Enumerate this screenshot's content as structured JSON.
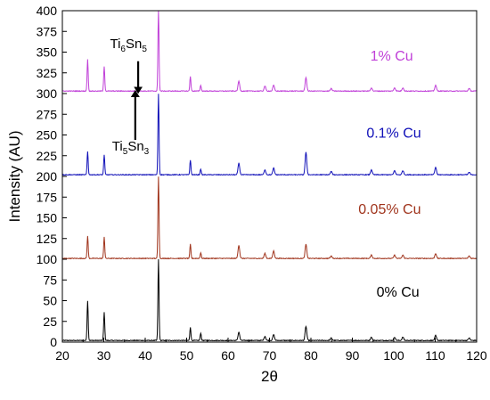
{
  "chart_data": {
    "type": "line",
    "title": "",
    "xlabel": "2θ",
    "ylabel": "Intensity (AU)",
    "xlim": [
      20,
      120
    ],
    "ylim": [
      0,
      400
    ],
    "xticks": [
      20,
      30,
      40,
      50,
      60,
      70,
      80,
      90,
      100,
      110,
      120
    ],
    "yticks": [
      0,
      25,
      50,
      75,
      100,
      125,
      150,
      175,
      200,
      225,
      250,
      275,
      300,
      325,
      350,
      375,
      400
    ],
    "grid": false,
    "legend": "none",
    "series": [
      {
        "name": "0% Cu",
        "color": "#000000",
        "baseline": 2,
        "peaks": [
          [
            26.1,
            48
          ],
          [
            30.1,
            34
          ],
          [
            43.2,
            98
          ],
          [
            50.9,
            16
          ],
          [
            53.4,
            9
          ],
          [
            62.6,
            10
          ],
          [
            68.9,
            5
          ],
          [
            71.0,
            7
          ],
          [
            78.8,
            17
          ],
          [
            84.9,
            3
          ],
          [
            94.6,
            4
          ],
          [
            100.2,
            4
          ],
          [
            102.2,
            4
          ],
          [
            110.1,
            6
          ],
          [
            118.2,
            3
          ]
        ]
      },
      {
        "name": "0.05% Cu",
        "color": "#a0341c",
        "baseline": 101,
        "peaks": [
          [
            26.1,
            27
          ],
          [
            30.1,
            26
          ],
          [
            43.2,
            99
          ],
          [
            50.9,
            17
          ],
          [
            53.4,
            7
          ],
          [
            62.6,
            16
          ],
          [
            68.9,
            6
          ],
          [
            71.0,
            9
          ],
          [
            78.8,
            17
          ],
          [
            84.9,
            3
          ],
          [
            94.6,
            4
          ],
          [
            100.2,
            4
          ],
          [
            102.2,
            4
          ],
          [
            110.1,
            6
          ],
          [
            118.2,
            3
          ]
        ]
      },
      {
        "name": "0.1% Cu",
        "color": "#1010b8",
        "baseline": 202,
        "peaks": [
          [
            26.1,
            28
          ],
          [
            30.1,
            24
          ],
          [
            43.2,
            98
          ],
          [
            50.9,
            18
          ],
          [
            53.4,
            7
          ],
          [
            62.6,
            14
          ],
          [
            68.9,
            6
          ],
          [
            71.0,
            8
          ],
          [
            78.8,
            27
          ],
          [
            84.9,
            4
          ],
          [
            94.6,
            6
          ],
          [
            100.2,
            5
          ],
          [
            102.2,
            5
          ],
          [
            110.1,
            9
          ],
          [
            118.2,
            3
          ]
        ]
      },
      {
        "name": "1% Cu",
        "color": "#c040d8",
        "baseline": 303,
        "peaks": [
          [
            26.1,
            38
          ],
          [
            30.1,
            30
          ],
          [
            43.2,
            100
          ],
          [
            50.9,
            18
          ],
          [
            53.4,
            7
          ],
          [
            62.6,
            12
          ],
          [
            68.9,
            6
          ],
          [
            71.0,
            7
          ],
          [
            78.8,
            16
          ],
          [
            84.9,
            3
          ],
          [
            94.6,
            4
          ],
          [
            100.2,
            4
          ],
          [
            102.2,
            4
          ],
          [
            110.1,
            7
          ],
          [
            118.2,
            3
          ]
        ]
      }
    ],
    "series_labels": [
      {
        "text": "0% Cu",
        "x": 101,
        "y": 55
      },
      {
        "text": "0.05% Cu",
        "x": 99,
        "y": 155
      },
      {
        "text": "0.1% Cu",
        "x": 100,
        "y": 247
      },
      {
        "text": "1% Cu",
        "x": 99.5,
        "y": 340
      }
    ],
    "annotations": [
      {
        "base": "Ti",
        "sub1": "6",
        "mid": "Sn",
        "sub2": "5",
        "x": 31.5,
        "y": 355,
        "arrow_from": [
          38.3,
          339
        ],
        "arrow_to": [
          38.3,
          304
        ]
      },
      {
        "base": "Ti",
        "sub1": "5",
        "mid": "Sn",
        "sub2": "3",
        "x": 32,
        "y": 231,
        "arrow_from": [
          37.6,
          244
        ],
        "arrow_to": [
          37.6,
          300
        ]
      }
    ]
  }
}
